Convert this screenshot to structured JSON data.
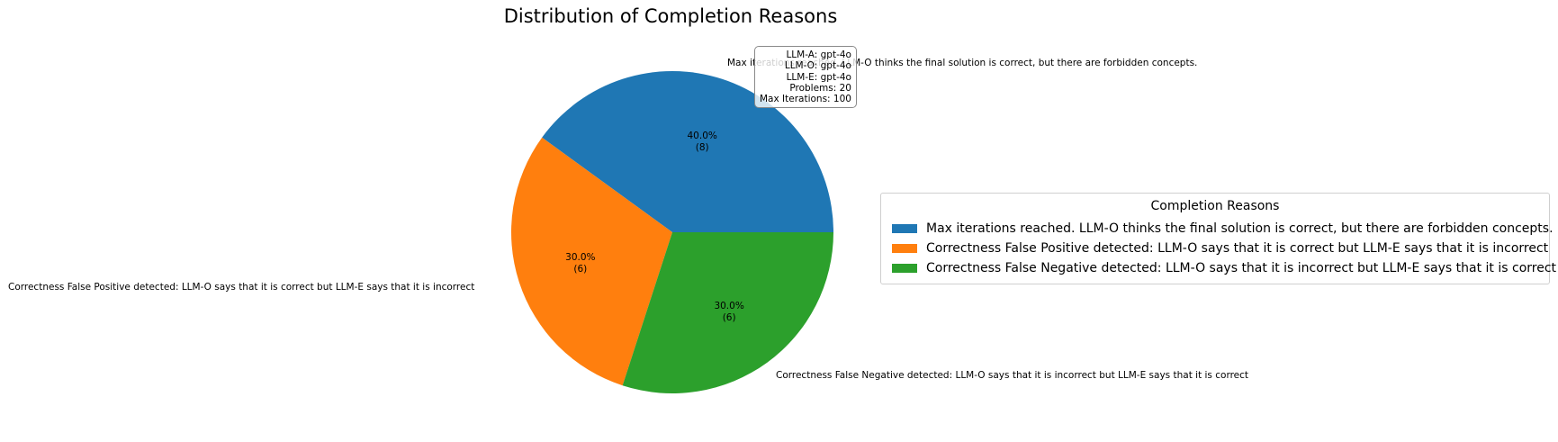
{
  "chart_data": {
    "type": "pie",
    "title": "Distribution of Completion Reasons",
    "slices": [
      {
        "label": "Max iterations reached. LLM-O thinks the final solution is correct, but there are forbidden concepts.",
        "value": 8,
        "percent": "40.0%",
        "count_label": "(8)",
        "color": "#1f77b4"
      },
      {
        "label": "Correctness False Positive detected: LLM-O says that it is correct but LLM-E says that it is incorrect",
        "value": 6,
        "percent": "30.0%",
        "count_label": "(6)",
        "color": "#ff7f0e"
      },
      {
        "label": "Correctness False Negative detected: LLM-O says that it is incorrect but LLM-E says that it is correct",
        "value": 6,
        "percent": "30.0%",
        "count_label": "(6)",
        "color": "#2ca02c"
      }
    ],
    "legend": {
      "title": "Completion Reasons",
      "placement": "right",
      "items": [
        "Max iterations reached. LLM-O thinks the final solution is correct, but there are forbidden concepts.",
        "Correctness False Positive detected: LLM-O says that it is correct but LLM-E says that it is incorrect",
        "Correctness False Negative detected: LLM-O says that it is incorrect but LLM-E says that it is correct"
      ]
    },
    "info_box": [
      "LLM-A: gpt-4o",
      "LLM-O: gpt-4o",
      "LLM-E: gpt-4o",
      "Problems: 20",
      "Max Iterations: 100"
    ]
  }
}
